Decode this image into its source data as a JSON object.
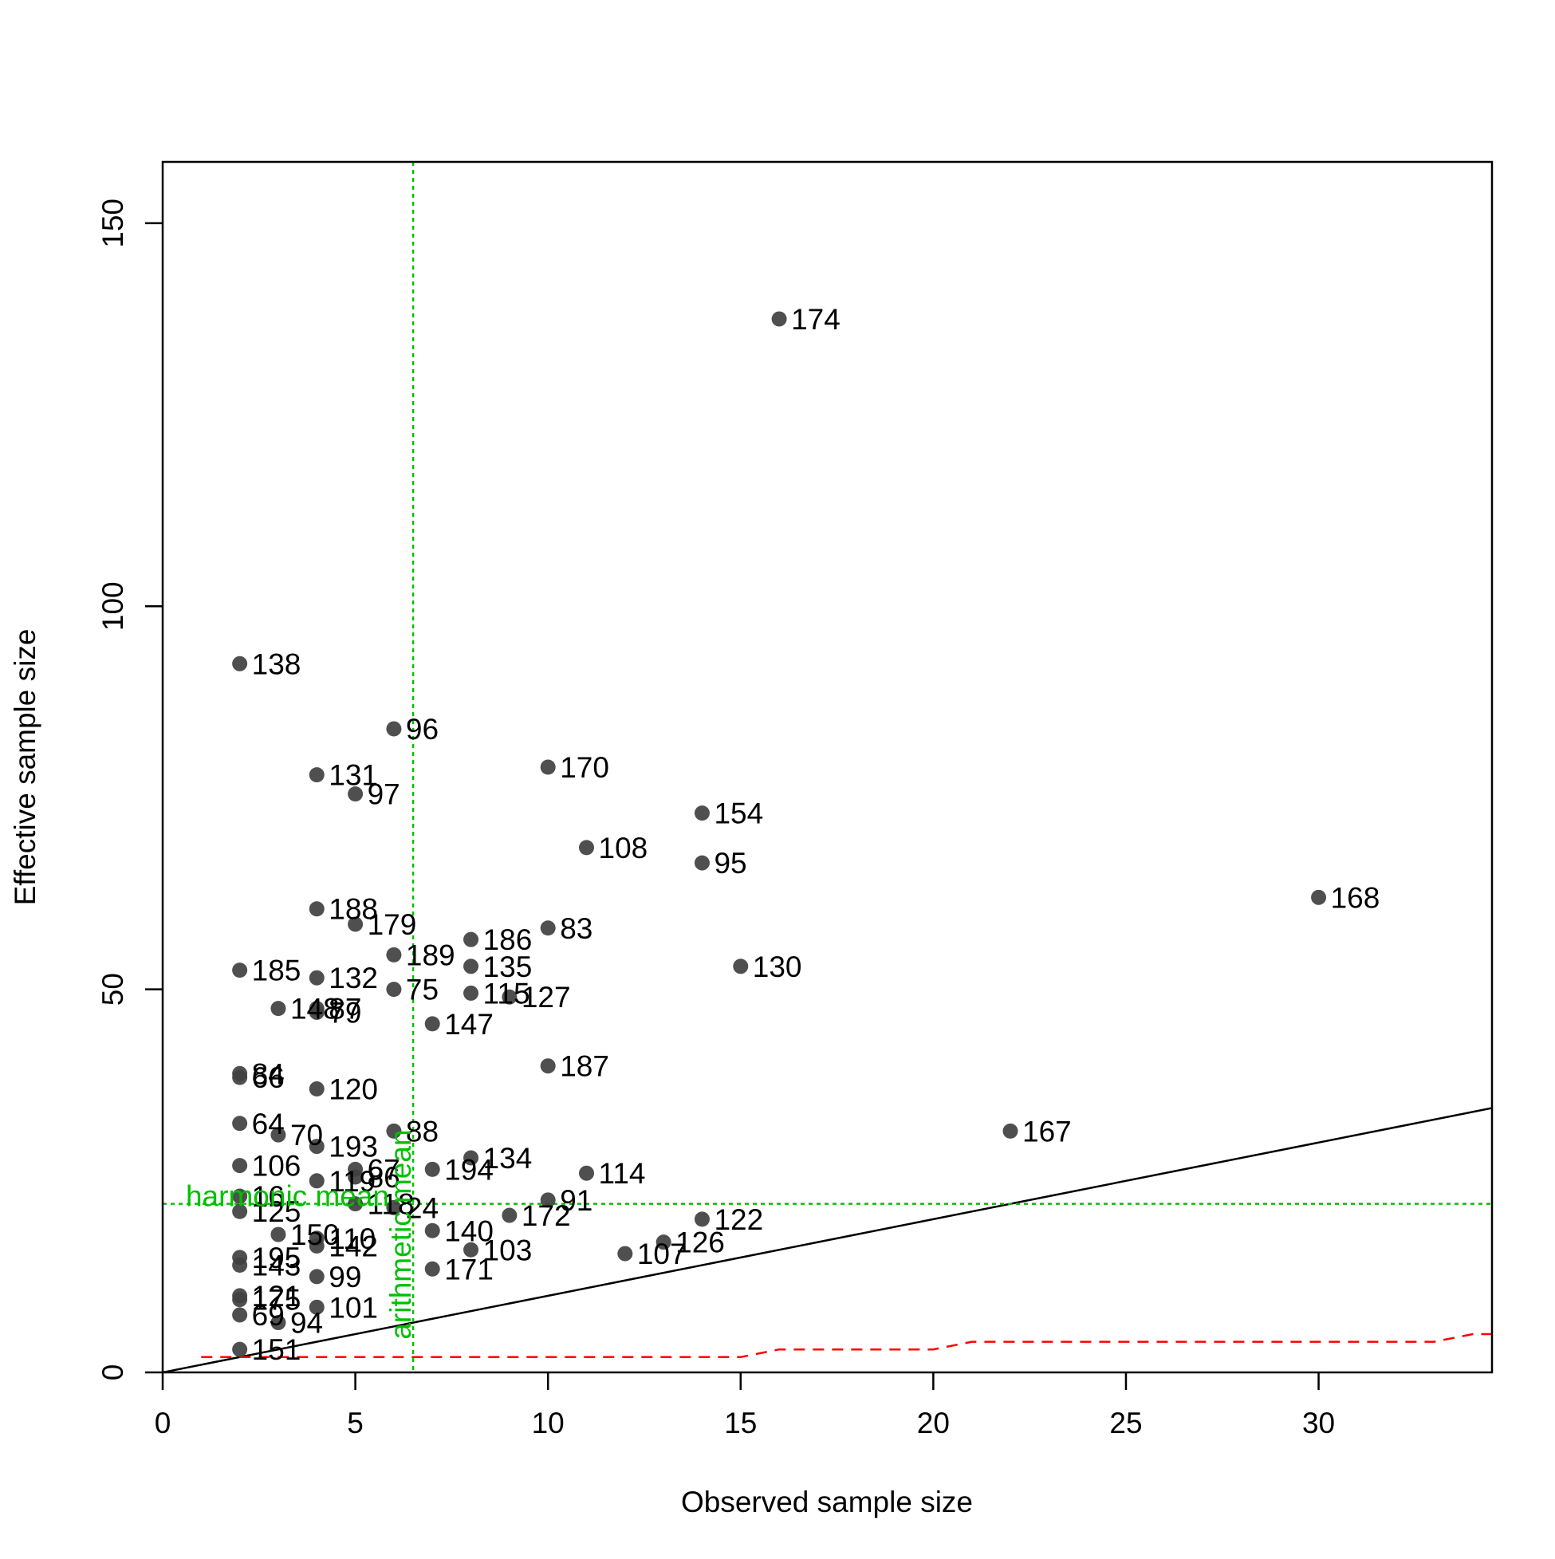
{
  "chart_data": {
    "type": "scatter",
    "title": "",
    "xlabel": "Observed sample size",
    "ylabel": "Effective sample size",
    "xlim": [
      0,
      34.5
    ],
    "ylim": [
      0,
      158
    ],
    "x_ticks": [
      0,
      5,
      10,
      15,
      20,
      25,
      30
    ],
    "y_ticks": [
      0,
      50,
      100,
      150
    ],
    "grid": false,
    "legend": "none",
    "colors": {
      "points": "#404040",
      "identity_line": "#000000",
      "mean_lines": "#00c000",
      "lower_bound": "#ff0000",
      "axes": "#000000"
    },
    "points": [
      {
        "label": "174",
        "x": 16,
        "y": 137.5
      },
      {
        "label": "138",
        "x": 2,
        "y": 92.5
      },
      {
        "label": "96",
        "x": 6,
        "y": 84
      },
      {
        "label": "131",
        "x": 4,
        "y": 78
      },
      {
        "label": "170",
        "x": 10,
        "y": 79
      },
      {
        "label": "97",
        "x": 5,
        "y": 75.5
      },
      {
        "label": "154",
        "x": 14,
        "y": 73
      },
      {
        "label": "108",
        "x": 11,
        "y": 68.5
      },
      {
        "label": "95",
        "x": 14,
        "y": 66.5
      },
      {
        "label": "168",
        "x": 30,
        "y": 62
      },
      {
        "label": "188",
        "x": 4,
        "y": 60.5
      },
      {
        "label": "179",
        "x": 5,
        "y": 58.5
      },
      {
        "label": "83",
        "x": 10,
        "y": 58
      },
      {
        "label": "186",
        "x": 8,
        "y": 56.5
      },
      {
        "label": "189",
        "x": 6,
        "y": 54.5
      },
      {
        "label": "185",
        "x": 2,
        "y": 52.5
      },
      {
        "label": "135",
        "x": 8,
        "y": 53
      },
      {
        "label": "130",
        "x": 15,
        "y": 53
      },
      {
        "label": "132",
        "x": 4,
        "y": 51.5
      },
      {
        "label": "75",
        "x": 6,
        "y": 50
      },
      {
        "label": "115",
        "x": 8,
        "y": 49.5
      },
      {
        "label": "127",
        "x": 9,
        "y": 49
      },
      {
        "label": "148",
        "x": 3,
        "y": 47.5
      },
      {
        "label": "87",
        "x": 4,
        "y": 47.5
      },
      {
        "label": "79",
        "x": 4,
        "y": 47
      },
      {
        "label": "147",
        "x": 7,
        "y": 45.5
      },
      {
        "label": "187",
        "x": 10,
        "y": 40
      },
      {
        "label": "84",
        "x": 2,
        "y": 39
      },
      {
        "label": "66",
        "x": 2,
        "y": 38.5
      },
      {
        "label": "120",
        "x": 4,
        "y": 37
      },
      {
        "label": "64",
        "x": 2,
        "y": 32.5
      },
      {
        "label": "88",
        "x": 6,
        "y": 31.5
      },
      {
        "label": "70",
        "x": 3,
        "y": 31
      },
      {
        "label": "167",
        "x": 22,
        "y": 31.5
      },
      {
        "label": "193",
        "x": 4,
        "y": 29.5
      },
      {
        "label": "134",
        "x": 8,
        "y": 28
      },
      {
        "label": "106",
        "x": 2,
        "y": 27
      },
      {
        "label": "194",
        "x": 7,
        "y": 26.5
      },
      {
        "label": "67",
        "x": 5,
        "y": 26.5
      },
      {
        "label": "114",
        "x": 11,
        "y": 26
      },
      {
        "label": "86",
        "x": 5,
        "y": 25.5
      },
      {
        "label": "119",
        "x": 4,
        "y": 25
      },
      {
        "label": "16",
        "x": 2,
        "y": 23
      },
      {
        "label": "91",
        "x": 10,
        "y": 22.5
      },
      {
        "label": "24",
        "x": 6,
        "y": 21.5
      },
      {
        "label": "118",
        "x": 5,
        "y": 22
      },
      {
        "label": "125",
        "x": 2,
        "y": 21
      },
      {
        "label": "172",
        "x": 9,
        "y": 20.5
      },
      {
        "label": "122",
        "x": 14,
        "y": 20
      },
      {
        "label": "140",
        "x": 7,
        "y": 18.5
      },
      {
        "label": "150",
        "x": 3,
        "y": 18
      },
      {
        "label": "110",
        "x": 4,
        "y": 17.5
      },
      {
        "label": "126",
        "x": 13,
        "y": 17
      },
      {
        "label": "132b",
        "x": 4,
        "y": 16.5
      },
      {
        "label": "103",
        "x": 8,
        "y": 16
      },
      {
        "label": "107",
        "x": 12,
        "y": 15.5
      },
      {
        "label": "195",
        "x": 2,
        "y": 15
      },
      {
        "label": "143",
        "x": 2,
        "y": 14
      },
      {
        "label": "171",
        "x": 7,
        "y": 13.5
      },
      {
        "label": "99",
        "x": 4,
        "y": 12.5
      },
      {
        "label": "121",
        "x": 2,
        "y": 10
      },
      {
        "label": "171b",
        "x": 2,
        "y": 9.5
      },
      {
        "label": "101",
        "x": 4,
        "y": 8.5
      },
      {
        "label": "69",
        "x": 2,
        "y": 7.5
      },
      {
        "label": "94",
        "x": 3,
        "y": 6.5
      },
      {
        "label": "151",
        "x": 2,
        "y": 3
      }
    ],
    "point_text": {
      "132b": "142",
      "171b": "175"
    },
    "identity_line": {
      "x": [
        0,
        34.5
      ],
      "y": [
        0,
        34.5
      ]
    },
    "arithmetic_mean": {
      "value": 6.5,
      "label": "arithmetic mean"
    },
    "harmonic_mean": {
      "value": 22,
      "label": "harmonic mean"
    },
    "lower_bound": {
      "x": [
        1,
        15,
        16,
        20,
        21,
        33,
        34,
        34.5
      ],
      "y": [
        2,
        2,
        3,
        3,
        4,
        4,
        5,
        5
      ]
    }
  }
}
